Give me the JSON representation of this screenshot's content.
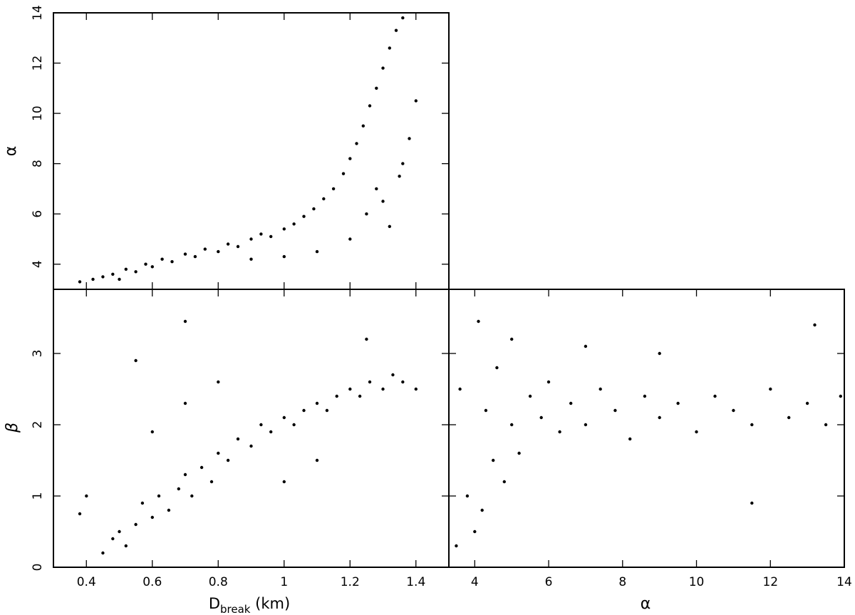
{
  "chart_data": [
    {
      "type": "scatter",
      "panel": "top-left",
      "xlabel": "",
      "ylabel": "α",
      "xlim": [
        0.3,
        1.5
      ],
      "ylim": [
        3,
        14
      ],
      "xticks": [
        0.4,
        0.6,
        0.8,
        1.0,
        1.2,
        1.4
      ],
      "xtick_labels_visible": false,
      "yticks": [
        4,
        6,
        8,
        10,
        12,
        14
      ],
      "ytick_labels": [
        "4",
        "6",
        "8",
        "10",
        "12",
        "14"
      ],
      "series": [
        {
          "points": [
            [
              0.38,
              3.3
            ],
            [
              0.42,
              3.4
            ],
            [
              0.45,
              3.5
            ],
            [
              0.48,
              3.6
            ],
            [
              0.5,
              3.4
            ],
            [
              0.52,
              3.8
            ],
            [
              0.55,
              3.7
            ],
            [
              0.58,
              4.0
            ],
            [
              0.6,
              3.9
            ],
            [
              0.63,
              4.2
            ],
            [
              0.66,
              4.1
            ],
            [
              0.7,
              4.4
            ],
            [
              0.73,
              4.3
            ],
            [
              0.76,
              4.6
            ],
            [
              0.8,
              4.5
            ],
            [
              0.83,
              4.8
            ],
            [
              0.86,
              4.7
            ],
            [
              0.9,
              5.0
            ],
            [
              0.93,
              5.2
            ],
            [
              0.96,
              5.1
            ],
            [
              1.0,
              5.4
            ],
            [
              1.03,
              5.6
            ],
            [
              1.06,
              5.9
            ],
            [
              1.09,
              6.2
            ],
            [
              1.12,
              6.6
            ],
            [
              1.15,
              7.0
            ],
            [
              1.18,
              7.6
            ],
            [
              1.2,
              8.2
            ],
            [
              1.22,
              8.8
            ],
            [
              1.24,
              9.5
            ],
            [
              1.26,
              10.3
            ],
            [
              1.28,
              11.0
            ],
            [
              1.3,
              11.8
            ],
            [
              1.32,
              12.6
            ],
            [
              1.34,
              13.3
            ],
            [
              1.36,
              13.8
            ],
            [
              1.25,
              6.0
            ],
            [
              1.3,
              6.5
            ],
            [
              1.35,
              7.5
            ],
            [
              1.38,
              9.0
            ],
            [
              1.4,
              10.5
            ],
            [
              1.1,
              4.5
            ],
            [
              1.2,
              5.0
            ],
            [
              1.0,
              4.3
            ],
            [
              0.9,
              4.2
            ],
            [
              1.32,
              5.5
            ],
            [
              1.36,
              8.0
            ],
            [
              1.28,
              7.0
            ]
          ]
        }
      ]
    },
    {
      "type": "scatter",
      "panel": "bottom-left",
      "xlabel": "D_break (km)",
      "xlabel_main": "D",
      "xlabel_sub": "break",
      "xlabel_unit": "(km)",
      "ylabel": "β",
      "xlim": [
        0.3,
        1.5
      ],
      "ylim": [
        0,
        3.9
      ],
      "xticks": [
        0.4,
        0.6,
        0.8,
        1.0,
        1.2,
        1.4
      ],
      "xtick_labels": [
        "0.4",
        "0.6",
        "0.8",
        "1",
        "1.2",
        "1.4"
      ],
      "yticks": [
        0,
        1,
        2,
        3
      ],
      "ytick_labels": [
        "0",
        "1",
        "2",
        "3"
      ],
      "series": [
        {
          "points": [
            [
              0.45,
              0.2
            ],
            [
              0.48,
              0.4
            ],
            [
              0.5,
              0.5
            ],
            [
              0.52,
              0.3
            ],
            [
              0.55,
              0.6
            ],
            [
              0.57,
              0.9
            ],
            [
              0.6,
              0.7
            ],
            [
              0.62,
              1.0
            ],
            [
              0.65,
              0.8
            ],
            [
              0.68,
              1.1
            ],
            [
              0.7,
              1.3
            ],
            [
              0.72,
              1.0
            ],
            [
              0.75,
              1.4
            ],
            [
              0.78,
              1.2
            ],
            [
              0.8,
              1.6
            ],
            [
              0.83,
              1.5
            ],
            [
              0.86,
              1.8
            ],
            [
              0.9,
              1.7
            ],
            [
              0.93,
              2.0
            ],
            [
              0.96,
              1.9
            ],
            [
              1.0,
              2.1
            ],
            [
              1.03,
              2.0
            ],
            [
              1.06,
              2.2
            ],
            [
              1.1,
              2.3
            ],
            [
              1.13,
              2.2
            ],
            [
              1.16,
              2.4
            ],
            [
              1.2,
              2.5
            ],
            [
              1.23,
              2.4
            ],
            [
              1.26,
              2.6
            ],
            [
              1.3,
              2.5
            ],
            [
              1.33,
              2.7
            ],
            [
              1.36,
              2.6
            ],
            [
              1.4,
              2.5
            ],
            [
              0.6,
              1.9
            ],
            [
              0.7,
              2.3
            ],
            [
              0.8,
              2.6
            ],
            [
              1.0,
              1.2
            ],
            [
              1.1,
              1.5
            ],
            [
              0.55,
              2.9
            ],
            [
              0.7,
              3.45
            ],
            [
              1.25,
              3.2
            ],
            [
              0.4,
              1.0
            ],
            [
              0.38,
              0.75
            ]
          ]
        }
      ]
    },
    {
      "type": "scatter",
      "panel": "bottom-right",
      "xlabel": "α",
      "ylabel": "",
      "xlim": [
        3.3,
        14
      ],
      "ylim": [
        0,
        3.9
      ],
      "xticks": [
        4,
        6,
        8,
        10,
        12,
        14
      ],
      "xtick_labels": [
        "4",
        "6",
        "8",
        "10",
        "12",
        "14"
      ],
      "yticks": [
        0,
        1,
        2,
        3
      ],
      "ytick_labels_visible": false,
      "series": [
        {
          "points": [
            [
              3.5,
              0.3
            ],
            [
              3.6,
              2.5
            ],
            [
              3.8,
              1.0
            ],
            [
              4.0,
              0.5
            ],
            [
              4.2,
              0.8
            ],
            [
              4.3,
              2.2
            ],
            [
              4.5,
              1.5
            ],
            [
              4.6,
              2.8
            ],
            [
              4.8,
              1.2
            ],
            [
              5.0,
              2.0
            ],
            [
              5.2,
              1.6
            ],
            [
              5.5,
              2.4
            ],
            [
              5.8,
              2.1
            ],
            [
              6.0,
              2.6
            ],
            [
              6.3,
              1.9
            ],
            [
              6.6,
              2.3
            ],
            [
              7.0,
              2.0
            ],
            [
              7.4,
              2.5
            ],
            [
              7.8,
              2.2
            ],
            [
              8.2,
              1.8
            ],
            [
              8.6,
              2.4
            ],
            [
              9.0,
              2.1
            ],
            [
              9.5,
              2.3
            ],
            [
              10.0,
              1.9
            ],
            [
              10.5,
              2.4
            ],
            [
              11.0,
              2.2
            ],
            [
              11.5,
              2.0
            ],
            [
              12.0,
              2.5
            ],
            [
              12.5,
              2.1
            ],
            [
              13.0,
              2.3
            ],
            [
              13.5,
              2.0
            ],
            [
              13.9,
              2.4
            ],
            [
              5.0,
              3.2
            ],
            [
              7.0,
              3.1
            ],
            [
              9.0,
              3.0
            ],
            [
              13.2,
              3.4
            ],
            [
              4.1,
              3.45
            ],
            [
              11.5,
              0.9
            ]
          ]
        }
      ]
    }
  ]
}
